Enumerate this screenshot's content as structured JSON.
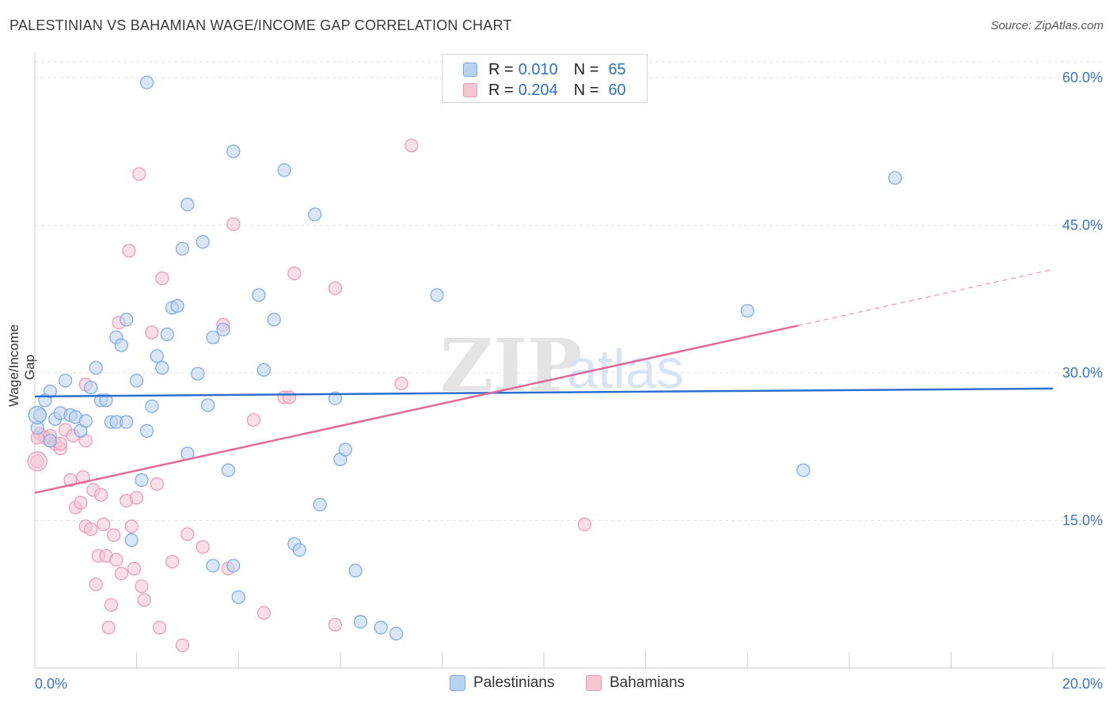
{
  "title": "PALESTINIAN VS BAHAMIAN WAGE/INCOME GAP CORRELATION CHART",
  "source": "Source: ZipAtlas.com",
  "watermark": {
    "bold": "ZIP",
    "light": "atlas"
  },
  "legend_top": {
    "r_label": "R =",
    "n_label": "N =",
    "rows": [
      {
        "r": "0.010",
        "n": "65",
        "color": "#7aa7e6"
      },
      {
        "r": "0.204",
        "n": "60",
        "color": "#f2a3bd"
      }
    ]
  },
  "legend_bottom": [
    {
      "name": "Palestinians"
    },
    {
      "name": "Bahamians"
    }
  ],
  "colors": {
    "blue_fill": "#b9d1f2",
    "blue_stroke": "#7aa7e6",
    "blue_line": "#2e6fce",
    "pink_fill": "#f8c5d5",
    "pink_stroke": "#ee97b3",
    "pink_line": "#e06b97",
    "tick_text": "#3d74c4",
    "grid": "#e2e2e2"
  },
  "chart_data": {
    "type": "scatter",
    "title": "PALESTINIAN VS BAHAMIAN WAGE/INCOME GAP CORRELATION CHART",
    "xlabel": "",
    "ylabel": "Wage/Income Gap",
    "xlim": [
      0,
      20
    ],
    "ylim": [
      0,
      60
    ],
    "x_tick_labels": [
      {
        "value": 0,
        "label": "0.0%"
      },
      {
        "value": 20,
        "label": "20.0%"
      }
    ],
    "y_tick_labels": [
      {
        "value": 15,
        "label": "15.0%"
      },
      {
        "value": 30,
        "label": "30.0%"
      },
      {
        "value": 45,
        "label": "45.0%"
      },
      {
        "value": 60,
        "label": "60.0%"
      }
    ],
    "grid": true,
    "legend_position": "top-center",
    "series": [
      {
        "name": "Palestinians",
        "trend": {
          "x": [
            0,
            20
          ],
          "y": [
            27.6,
            28.4
          ]
        },
        "points": [
          [
            0.1,
            25.7
          ],
          [
            0.2,
            27.2
          ],
          [
            0.3,
            28.1
          ],
          [
            0.4,
            25.3
          ],
          [
            0.5,
            25.9
          ],
          [
            0.6,
            29.2
          ],
          [
            0.7,
            25.7
          ],
          [
            0.8,
            25.5
          ],
          [
            0.9,
            24.1
          ],
          [
            1.0,
            25.1
          ],
          [
            1.1,
            28.5
          ],
          [
            1.2,
            30.5
          ],
          [
            1.3,
            27.2
          ],
          [
            1.4,
            27.2
          ],
          [
            1.5,
            25.0
          ],
          [
            1.6,
            25.0
          ],
          [
            1.6,
            33.6
          ],
          [
            1.7,
            32.8
          ],
          [
            1.8,
            35.4
          ],
          [
            1.8,
            25.0
          ],
          [
            1.9,
            13.0
          ],
          [
            2.0,
            29.2
          ],
          [
            2.1,
            19.1
          ],
          [
            2.2,
            24.1
          ],
          [
            2.3,
            26.6
          ],
          [
            2.4,
            31.7
          ],
          [
            2.5,
            30.5
          ],
          [
            2.6,
            33.9
          ],
          [
            2.7,
            36.6
          ],
          [
            2.8,
            36.8
          ],
          [
            2.9,
            42.6
          ],
          [
            3.0,
            21.8
          ],
          [
            3.0,
            47.1
          ],
          [
            3.2,
            29.9
          ],
          [
            3.3,
            43.3
          ],
          [
            3.4,
            26.7
          ],
          [
            3.5,
            33.6
          ],
          [
            3.5,
            10.4
          ],
          [
            3.7,
            34.4
          ],
          [
            3.8,
            20.1
          ],
          [
            3.9,
            10.4
          ],
          [
            3.9,
            52.5
          ],
          [
            4.0,
            7.2
          ],
          [
            4.4,
            37.9
          ],
          [
            4.5,
            30.3
          ],
          [
            4.7,
            35.4
          ],
          [
            4.9,
            50.6
          ],
          [
            5.1,
            12.6
          ],
          [
            5.2,
            12.0
          ],
          [
            5.5,
            46.1
          ],
          [
            5.6,
            16.6
          ],
          [
            5.9,
            27.4
          ],
          [
            6.0,
            21.2
          ],
          [
            6.1,
            22.2
          ],
          [
            6.3,
            9.9
          ],
          [
            6.4,
            4.7
          ],
          [
            6.8,
            4.1
          ],
          [
            7.1,
            3.5
          ],
          [
            7.9,
            37.9
          ],
          [
            2.2,
            59.5
          ],
          [
            0.05,
            24.4
          ],
          [
            14.0,
            36.3
          ],
          [
            15.1,
            20.1
          ],
          [
            16.9,
            49.8
          ],
          [
            0.3,
            23.1
          ]
        ]
      },
      {
        "name": "Bahamians",
        "trend": {
          "x": [
            0,
            15
          ],
          "y": [
            17.8,
            34.8
          ]
        },
        "trend_dashed": {
          "x": [
            15,
            20
          ],
          "y": [
            34.8,
            40.5
          ]
        },
        "points": [
          [
            0.05,
            21.0
          ],
          [
            0.1,
            23.8
          ],
          [
            0.2,
            23.4
          ],
          [
            0.3,
            23.1
          ],
          [
            0.4,
            22.8
          ],
          [
            0.5,
            22.3
          ],
          [
            0.6,
            24.2
          ],
          [
            0.7,
            19.1
          ],
          [
            0.75,
            23.6
          ],
          [
            0.8,
            16.3
          ],
          [
            0.9,
            16.8
          ],
          [
            0.95,
            19.4
          ],
          [
            1.0,
            28.8
          ],
          [
            1.0,
            14.4
          ],
          [
            1.1,
            14.1
          ],
          [
            1.15,
            18.1
          ],
          [
            1.2,
            8.5
          ],
          [
            1.25,
            11.4
          ],
          [
            1.3,
            17.6
          ],
          [
            1.35,
            14.6
          ],
          [
            1.4,
            11.4
          ],
          [
            1.45,
            4.1
          ],
          [
            1.5,
            6.4
          ],
          [
            1.55,
            13.5
          ],
          [
            1.6,
            11.0
          ],
          [
            1.65,
            35.1
          ],
          [
            1.7,
            9.6
          ],
          [
            1.8,
            17.0
          ],
          [
            1.85,
            42.4
          ],
          [
            1.9,
            14.4
          ],
          [
            1.95,
            10.1
          ],
          [
            2.0,
            17.3
          ],
          [
            2.05,
            50.2
          ],
          [
            2.1,
            8.3
          ],
          [
            2.15,
            6.9
          ],
          [
            2.3,
            34.1
          ],
          [
            2.4,
            18.7
          ],
          [
            2.45,
            4.1
          ],
          [
            2.5,
            39.6
          ],
          [
            2.7,
            10.8
          ],
          [
            2.9,
            2.3
          ],
          [
            3.0,
            13.6
          ],
          [
            3.3,
            12.3
          ],
          [
            3.7,
            34.9
          ],
          [
            3.8,
            10.1
          ],
          [
            3.9,
            45.1
          ],
          [
            4.3,
            25.2
          ],
          [
            4.5,
            5.6
          ],
          [
            4.9,
            27.5
          ],
          [
            5.0,
            27.5
          ],
          [
            5.1,
            40.1
          ],
          [
            5.9,
            4.4
          ],
          [
            5.9,
            38.6
          ],
          [
            7.2,
            28.9
          ],
          [
            7.4,
            53.1
          ],
          [
            10.8,
            14.6
          ],
          [
            0.05,
            23.4
          ],
          [
            0.5,
            22.8
          ],
          [
            1.0,
            23.1
          ],
          [
            0.3,
            23.6
          ]
        ]
      }
    ]
  }
}
